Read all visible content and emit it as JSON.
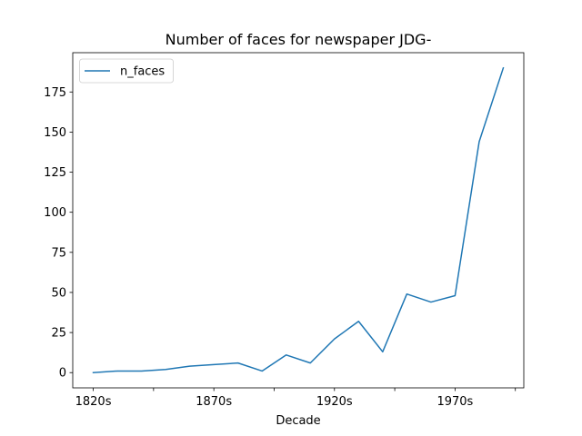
{
  "chart_data": {
    "type": "line",
    "title": "Number of faces for newspaper JDG-",
    "xlabel": "Decade",
    "ylabel": "",
    "x": [
      "1820s",
      "1830s",
      "1840s",
      "1850s",
      "1860s",
      "1870s",
      "1880s",
      "1890s",
      "1900s",
      "1910s",
      "1920s",
      "1930s",
      "1940s",
      "1950s",
      "1960s",
      "1970s",
      "1980s",
      "1990s"
    ],
    "x_tick_labels": [
      "1820s",
      "1870s",
      "1920s",
      "1970s"
    ],
    "x_tick_indices": [
      0,
      5,
      10,
      15
    ],
    "x_minor_tick_indices": [
      2.5,
      7.5,
      12.5,
      17.5
    ],
    "series": [
      {
        "name": "n_faces",
        "color": "#1f77b4",
        "values": [
          0,
          1,
          1,
          2,
          4,
          5,
          6,
          1,
          11,
          6,
          21,
          32,
          13,
          49,
          44,
          48,
          144,
          190
        ]
      }
    ],
    "ylim": [
      -9.5,
      199.5
    ],
    "y_ticks": [
      0,
      25,
      50,
      75,
      100,
      125,
      150,
      175
    ],
    "y_tick_labels": [
      "0",
      "25",
      "50",
      "75",
      "100",
      "125",
      "150",
      "175"
    ],
    "legend": {
      "placement": "top-left",
      "entries": [
        "n_faces"
      ]
    },
    "grid": false
  }
}
